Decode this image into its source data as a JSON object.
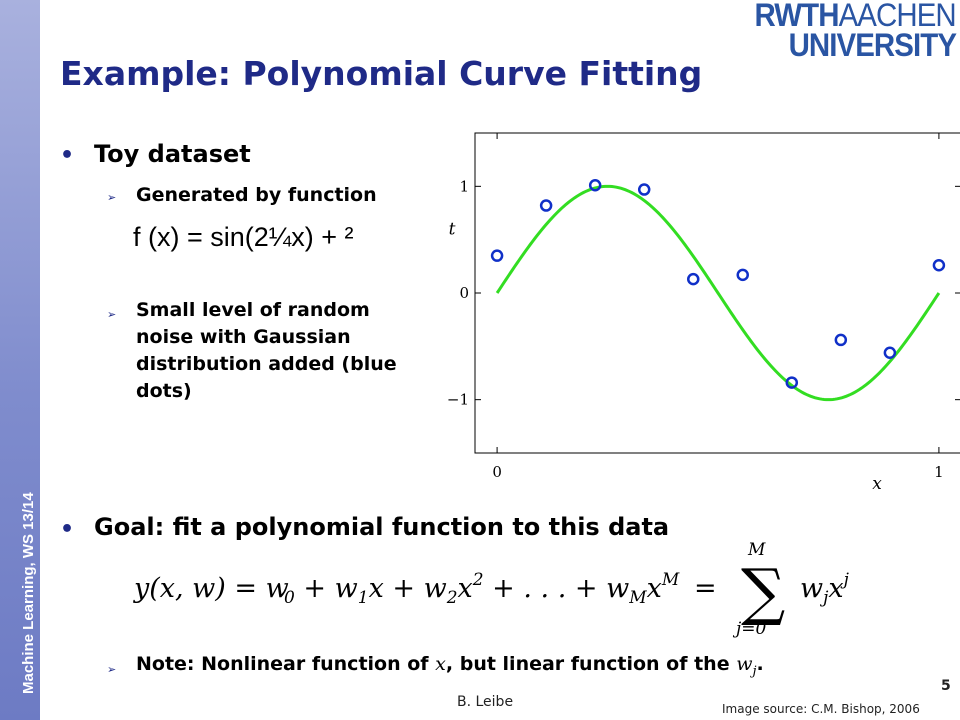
{
  "sidebar": {
    "text": "Machine Learning, WS 13/14"
  },
  "logo": {
    "line1_a": "RWTH",
    "line1_b": "AACHEN",
    "line2": "UNIVERSITY"
  },
  "title": "Example: Polynomial Curve Fitting",
  "bullets": {
    "toy_dataset": "Toy dataset",
    "generated": "Generated by function",
    "formula": "f (x) = sin(2¼x) + ²",
    "noise": "Small level of random noise with Gaussian distribution added (blue dots)",
    "goal": "Goal: fit a polynomial function to this data",
    "note_a": "Note: Nonlinear function of ",
    "note_x": "x",
    "note_b": ", but linear function of the ",
    "note_w": "w",
    "note_j": "j",
    "note_end": "."
  },
  "equation": {
    "lhs": "y(x, w) = w",
    "sub0": "0",
    "p1": " + w",
    "sub1": "1",
    "p2": "x + w",
    "sub2": "2",
    "p3": "x",
    "sup2": "2",
    "p4": " + . . . + w",
    "subM": "M",
    "p5": "x",
    "supM": "M",
    "eq": "=",
    "sum_top": "M",
    "sum_bottom": "j=0",
    "term": "w",
    "term_sub": "j",
    "term_x": "x",
    "term_sup": "j"
  },
  "footer": {
    "author": "B. Leibe",
    "page": "5",
    "image_source": "Image source: C.M. Bishop, 2006"
  },
  "chart_data": {
    "type": "scatter",
    "xlabel": "x",
    "ylabel": "t",
    "xlim": [
      -0.05,
      1.05
    ],
    "ylim": [
      -1.5,
      1.5
    ],
    "xticks": [
      0,
      1
    ],
    "yticks": [
      1,
      0,
      -1
    ],
    "xtick_labels": [
      "0",
      "1"
    ],
    "ytick_labels": [
      "1",
      "0",
      "−1"
    ],
    "grid": false,
    "curve": {
      "function": "sin(2πx)",
      "x_range": [
        0,
        1
      ],
      "color": "#33dd22"
    },
    "points": {
      "color": "#1030c8",
      "x": [
        0.0,
        0.111,
        0.222,
        0.333,
        0.444,
        0.556,
        0.667,
        0.778,
        0.889,
        1.0
      ],
      "y": [
        0.35,
        0.82,
        1.01,
        0.97,
        0.13,
        0.17,
        -0.84,
        -0.44,
        -0.56,
        0.26
      ]
    }
  }
}
